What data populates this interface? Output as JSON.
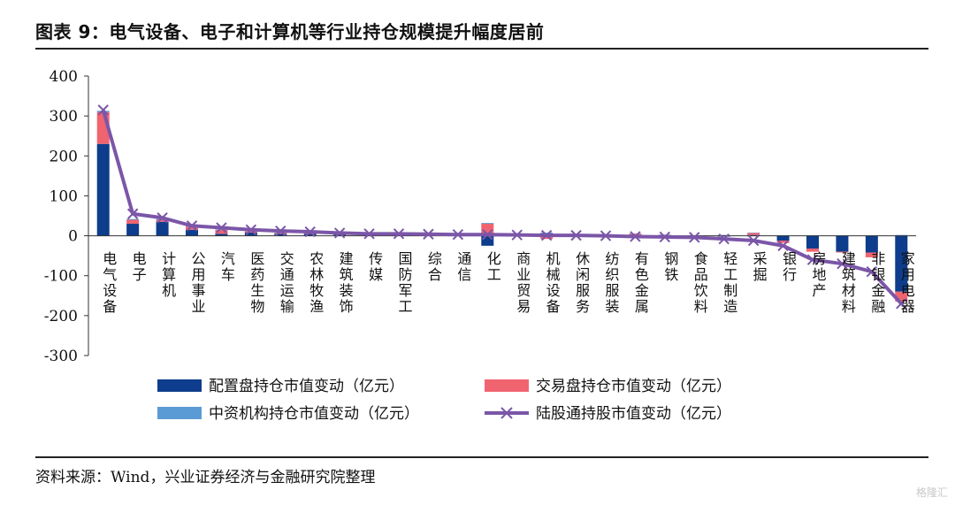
{
  "header": {
    "title": "图表 9：电气设备、电子和计算机等行业持仓规模提升幅度居前"
  },
  "footer": {
    "source": "资料来源：Wind，兴业证券经济与金融研究院整理",
    "watermark": "格隆汇"
  },
  "chart_data": {
    "type": "bar",
    "stacked": true,
    "title": "",
    "xlabel": "",
    "ylabel": "",
    "ylim": [
      -300,
      400
    ],
    "yticks": [
      400,
      300,
      200,
      100,
      0,
      -100,
      -200,
      -300
    ],
    "grid": false,
    "legend_position": "bottom",
    "colors": {
      "配置盘": "#0d3d8c",
      "交易盘": "#f06470",
      "中资机构": "#5b9bd5",
      "陆股通": "#7b56a8"
    },
    "categories": [
      "电气设备",
      "电子",
      "计算机",
      "公用事业",
      "汽车",
      "医药生物",
      "交通运输",
      "农林牧渔",
      "建筑装饰",
      "传媒",
      "国防军工",
      "综合",
      "通信",
      "化工",
      "商业贸易",
      "机械设备",
      "休闲服务",
      "纺织服装",
      "有色金属",
      "钢铁",
      "食品饮料",
      "轻工制造",
      "采掘",
      "银行",
      "房地产",
      "建筑材料",
      "非银金融",
      "家用电器"
    ],
    "series": [
      {
        "name": "配置盘持仓市值变动（亿元）",
        "kind": "bar",
        "values": [
          230,
          30,
          35,
          15,
          5,
          8,
          5,
          5,
          3,
          2,
          2,
          2,
          2,
          -25,
          1,
          6,
          1,
          1,
          2,
          1,
          0,
          -2,
          2,
          -12,
          -32,
          -40,
          -42,
          -140
        ]
      },
      {
        "name": "交易盘持仓市值变动（亿元）",
        "kind": "bar",
        "values": [
          80,
          10,
          5,
          8,
          10,
          3,
          2,
          3,
          2,
          2,
          2,
          1,
          2,
          30,
          1,
          -8,
          1,
          2,
          3,
          1,
          0,
          1,
          5,
          -6,
          -8,
          -2,
          -12,
          -25
        ]
      },
      {
        "name": "中资机构持仓市值变动（亿元）",
        "kind": "bar",
        "values": [
          3,
          2,
          2,
          2,
          1,
          1,
          1,
          1,
          1,
          1,
          1,
          1,
          1,
          2,
          1,
          2,
          1,
          1,
          1,
          1,
          1,
          1,
          1,
          1,
          1,
          1,
          1,
          2
        ]
      },
      {
        "name": "陆股通持股市值变动（亿元）",
        "kind": "line",
        "values": [
          315,
          55,
          45,
          25,
          20,
          15,
          12,
          10,
          7,
          5,
          5,
          4,
          3,
          3,
          2,
          1,
          1,
          0,
          -2,
          -3,
          -4,
          -8,
          -12,
          -25,
          -60,
          -70,
          -90,
          -170
        ]
      }
    ]
  }
}
